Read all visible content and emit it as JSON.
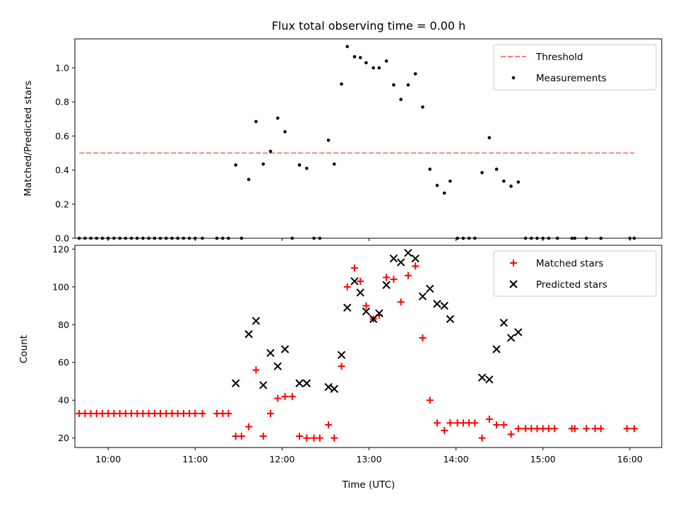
{
  "chart_data": [
    {
      "type": "scatter",
      "title": "Flux total observing time = 0.00 h",
      "ylabel": "Matched/Predicted stars",
      "xlabel": "",
      "xlim": [
        "09:37",
        "16:22"
      ],
      "ylim": [
        0,
        1.17
      ],
      "yticks": [
        "0.0",
        "0.2",
        "0.4",
        "0.6",
        "0.8",
        "1.0"
      ],
      "legend_position": "top-right",
      "threshold": {
        "name": "Threshold",
        "value": 0.5,
        "x_range": [
          "09:40",
          "16:03"
        ],
        "color": "#ff0000",
        "opacity": 0.5,
        "style": "dashed"
      },
      "series": [
        {
          "name": "Measurements",
          "color": "#000000",
          "marker": "dot",
          "points": [
            [
              "09:40",
              0
            ],
            [
              "09:44",
              0
            ],
            [
              "09:48",
              0
            ],
            [
              "09:52",
              0
            ],
            [
              "09:56",
              0
            ],
            [
              "10:00",
              0
            ],
            [
              "10:04",
              0
            ],
            [
              "10:08",
              0
            ],
            [
              "10:12",
              0
            ],
            [
              "10:16",
              0
            ],
            [
              "10:20",
              0
            ],
            [
              "10:24",
              0
            ],
            [
              "10:28",
              0
            ],
            [
              "10:32",
              0
            ],
            [
              "10:36",
              0
            ],
            [
              "10:40",
              0
            ],
            [
              "10:44",
              0
            ],
            [
              "10:48",
              0
            ],
            [
              "10:52",
              0
            ],
            [
              "10:56",
              0
            ],
            [
              "11:00",
              0
            ],
            [
              "11:05",
              0
            ],
            [
              "11:15",
              0
            ],
            [
              "11:19",
              0
            ],
            [
              "11:23",
              0
            ],
            [
              "11:28",
              0.43
            ],
            [
              "11:32",
              0
            ],
            [
              "11:37",
              0.345
            ],
            [
              "11:42",
              0.685
            ],
            [
              "11:47",
              0.435
            ],
            [
              "11:52",
              0.51
            ],
            [
              "11:57",
              0.705
            ],
            [
              "12:02",
              0.625
            ],
            [
              "12:07",
              0
            ],
            [
              "12:12",
              0.43
            ],
            [
              "12:17",
              0.41
            ],
            [
              "12:22",
              0
            ],
            [
              "12:26",
              0
            ],
            [
              "12:32",
              0.575
            ],
            [
              "12:36",
              0.435
            ],
            [
              "12:41",
              0.905
            ],
            [
              "12:45",
              1.125
            ],
            [
              "12:50",
              1.065
            ],
            [
              "12:54",
              1.06
            ],
            [
              "12:58",
              1.03
            ],
            [
              "13:03",
              1.0
            ],
            [
              "13:07",
              1.0
            ],
            [
              "13:12",
              1.04
            ],
            [
              "13:17",
              0.9
            ],
            [
              "13:22",
              0.815
            ],
            [
              "13:27",
              0.9
            ],
            [
              "13:32",
              0.965
            ],
            [
              "13:37",
              0.77
            ],
            [
              "13:42",
              0.405
            ],
            [
              "13:47",
              0.31
            ],
            [
              "13:52",
              0.265
            ],
            [
              "13:56",
              0.335
            ],
            [
              "14:01",
              0
            ],
            [
              "14:05",
              0
            ],
            [
              "14:09",
              0
            ],
            [
              "14:13",
              0
            ],
            [
              "14:18",
              0.385
            ],
            [
              "14:23",
              0.59
            ],
            [
              "14:28",
              0.405
            ],
            [
              "14:33",
              0.335
            ],
            [
              "14:38",
              0.305
            ],
            [
              "14:43",
              0.33
            ],
            [
              "14:48",
              0
            ],
            [
              "14:52",
              0
            ],
            [
              "14:56",
              0
            ],
            [
              "15:00",
              0
            ],
            [
              "15:04",
              0
            ],
            [
              "15:10",
              0
            ],
            [
              "15:20",
              0
            ],
            [
              "15:22",
              0
            ],
            [
              "15:30",
              0
            ],
            [
              "15:40",
              0
            ],
            [
              "16:00",
              0
            ],
            [
              "16:03",
              0
            ]
          ]
        }
      ]
    },
    {
      "type": "scatter",
      "title": "",
      "xlabel": "Time (UTC)",
      "ylabel": "Count",
      "xlim": [
        "09:37",
        "16:22"
      ],
      "ylim": [
        15,
        122
      ],
      "xticks": [
        "10:00",
        "11:00",
        "12:00",
        "13:00",
        "14:00",
        "15:00",
        "16:00"
      ],
      "yticks": [
        "20",
        "40",
        "60",
        "80",
        "100",
        "120"
      ],
      "legend_position": "top-right",
      "series": [
        {
          "name": "Matched stars",
          "color": "#ff0000",
          "marker": "plus",
          "points": [
            [
              "09:40",
              33
            ],
            [
              "09:44",
              33
            ],
            [
              "09:48",
              33
            ],
            [
              "09:52",
              33
            ],
            [
              "09:56",
              33
            ],
            [
              "10:00",
              33
            ],
            [
              "10:04",
              33
            ],
            [
              "10:08",
              33
            ],
            [
              "10:12",
              33
            ],
            [
              "10:16",
              33
            ],
            [
              "10:20",
              33
            ],
            [
              "10:24",
              33
            ],
            [
              "10:28",
              33
            ],
            [
              "10:32",
              33
            ],
            [
              "10:36",
              33
            ],
            [
              "10:40",
              33
            ],
            [
              "10:44",
              33
            ],
            [
              "10:48",
              33
            ],
            [
              "10:52",
              33
            ],
            [
              "10:56",
              33
            ],
            [
              "11:00",
              33
            ],
            [
              "11:05",
              33
            ],
            [
              "11:15",
              33
            ],
            [
              "11:19",
              33
            ],
            [
              "11:23",
              33
            ],
            [
              "11:28",
              21
            ],
            [
              "11:32",
              21
            ],
            [
              "11:37",
              26
            ],
            [
              "11:42",
              56
            ],
            [
              "11:47",
              21
            ],
            [
              "11:52",
              33
            ],
            [
              "11:57",
              41
            ],
            [
              "12:02",
              42
            ],
            [
              "12:07",
              42
            ],
            [
              "12:12",
              21
            ],
            [
              "12:17",
              20
            ],
            [
              "12:22",
              20
            ],
            [
              "12:26",
              20
            ],
            [
              "12:32",
              27
            ],
            [
              "12:36",
              20
            ],
            [
              "12:41",
              58
            ],
            [
              "12:45",
              100
            ],
            [
              "12:50",
              110
            ],
            [
              "12:54",
              103
            ],
            [
              "12:58",
              90
            ],
            [
              "13:03",
              83
            ],
            [
              "13:07",
              85
            ],
            [
              "13:12",
              105
            ],
            [
              "13:17",
              104
            ],
            [
              "13:22",
              92
            ],
            [
              "13:27",
              106
            ],
            [
              "13:32",
              111
            ],
            [
              "13:37",
              73
            ],
            [
              "13:42",
              40
            ],
            [
              "13:47",
              28
            ],
            [
              "13:52",
              24
            ],
            [
              "13:56",
              28
            ],
            [
              "14:01",
              28
            ],
            [
              "14:05",
              28
            ],
            [
              "14:09",
              28
            ],
            [
              "14:13",
              28
            ],
            [
              "14:18",
              20
            ],
            [
              "14:23",
              30
            ],
            [
              "14:28",
              27
            ],
            [
              "14:33",
              27
            ],
            [
              "14:38",
              22
            ],
            [
              "14:43",
              25
            ],
            [
              "14:48",
              25
            ],
            [
              "14:52",
              25
            ],
            [
              "14:56",
              25
            ],
            [
              "15:00",
              25
            ],
            [
              "15:04",
              25
            ],
            [
              "15:08",
              25
            ],
            [
              "15:20",
              25
            ],
            [
              "15:22",
              25
            ],
            [
              "15:30",
              25
            ],
            [
              "15:36",
              25
            ],
            [
              "15:40",
              25
            ],
            [
              "15:58",
              25
            ],
            [
              "16:03",
              25
            ]
          ]
        },
        {
          "name": "Predicted stars",
          "color": "#000000",
          "marker": "x",
          "points": [
            [
              "11:28",
              49
            ],
            [
              "11:37",
              75
            ],
            [
              "11:42",
              82
            ],
            [
              "11:47",
              48
            ],
            [
              "11:52",
              65
            ],
            [
              "11:57",
              58
            ],
            [
              "12:02",
              67
            ],
            [
              "12:12",
              49
            ],
            [
              "12:17",
              49
            ],
            [
              "12:32",
              47
            ],
            [
              "12:36",
              46
            ],
            [
              "12:41",
              64
            ],
            [
              "12:45",
              89
            ],
            [
              "12:50",
              103
            ],
            [
              "12:54",
              97
            ],
            [
              "12:58",
              87
            ],
            [
              "13:03",
              83
            ],
            [
              "13:07",
              86
            ],
            [
              "13:12",
              101
            ],
            [
              "13:17",
              115
            ],
            [
              "13:22",
              113
            ],
            [
              "13:27",
              118
            ],
            [
              "13:32",
              115
            ],
            [
              "13:37",
              95
            ],
            [
              "13:42",
              99
            ],
            [
              "13:47",
              91
            ],
            [
              "13:52",
              90
            ],
            [
              "13:56",
              83
            ],
            [
              "14:18",
              52
            ],
            [
              "14:23",
              51
            ],
            [
              "14:28",
              67
            ],
            [
              "14:33",
              81
            ],
            [
              "14:38",
              73
            ],
            [
              "14:43",
              76
            ]
          ]
        }
      ]
    }
  ]
}
